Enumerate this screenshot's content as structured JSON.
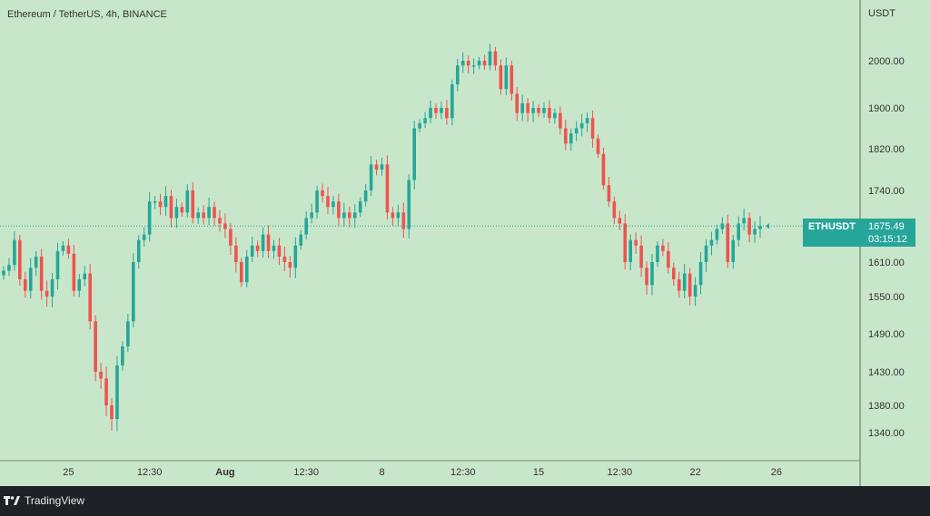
{
  "header": {
    "title": "Ethereum / TetherUS, 4h, BINANCE"
  },
  "footer": {
    "brand": "TradingView",
    "brand_icon": "tradingview-logo-icon"
  },
  "price_tag": {
    "symbol": "ETHUSDT",
    "price": "1675.49",
    "countdown": "03:15:12"
  },
  "colors": {
    "background": "#c8e6c9",
    "up": "#26a69a",
    "down": "#ef5350",
    "axis_text": "#333333"
  },
  "chart_data": {
    "type": "candlestick",
    "ylabel": "USDT",
    "ylim": [
      1300,
      2080
    ],
    "y_ticks": [
      2000,
      1900,
      1820,
      1740,
      1610,
      1550,
      1490,
      1430,
      1380,
      1340
    ],
    "y_tick_labels": [
      "2000.00",
      "1900.00",
      "1820.00",
      "1740.00",
      "1610.00",
      "1550.00",
      "1490.00",
      "1430.00",
      "1380.00",
      "1340.00"
    ],
    "x_tick_labels": [
      "25",
      "12:30",
      "Aug",
      "12:30",
      "8",
      "12:30",
      "15",
      "12:30",
      "22",
      "26"
    ],
    "x_tick_candle_index": [
      12,
      27,
      41,
      56,
      70,
      85,
      99,
      114,
      128,
      143
    ],
    "last_price": 1675.49,
    "grid": false,
    "close": [
      1595,
      1605,
      1650,
      1580,
      1560,
      1600,
      1620,
      1560,
      1550,
      1580,
      1630,
      1640,
      1625,
      1560,
      1580,
      1590,
      1510,
      1430,
      1420,
      1380,
      1360,
      1440,
      1470,
      1510,
      1610,
      1650,
      1660,
      1720,
      1720,
      1710,
      1730,
      1690,
      1710,
      1700,
      1740,
      1690,
      1700,
      1690,
      1710,
      1690,
      1680,
      1670,
      1640,
      1610,
      1575,
      1620,
      1640,
      1630,
      1660,
      1630,
      1640,
      1620,
      1610,
      1600,
      1640,
      1660,
      1690,
      1700,
      1740,
      1730,
      1710,
      1720,
      1690,
      1700,
      1690,
      1700,
      1720,
      1740,
      1790,
      1780,
      1790,
      1700,
      1690,
      1700,
      1670,
      1760,
      1860,
      1870,
      1880,
      1900,
      1890,
      1900,
      1880,
      1950,
      1990,
      2000,
      1990,
      1990,
      2000,
      1990,
      2020,
      1990,
      1940,
      1990,
      1930,
      1890,
      1910,
      1890,
      1900,
      1890,
      1900,
      1880,
      1890,
      1860,
      1830,
      1850,
      1860,
      1870,
      1880,
      1840,
      1810,
      1750,
      1720,
      1690,
      1680,
      1610,
      1650,
      1640,
      1600,
      1570,
      1610,
      1640,
      1630,
      1600,
      1580,
      1560,
      1590,
      1550,
      1570,
      1610,
      1640,
      1650,
      1670,
      1680,
      1610,
      1650,
      1680,
      1690,
      1660,
      1670,
      1675.49
    ]
  }
}
